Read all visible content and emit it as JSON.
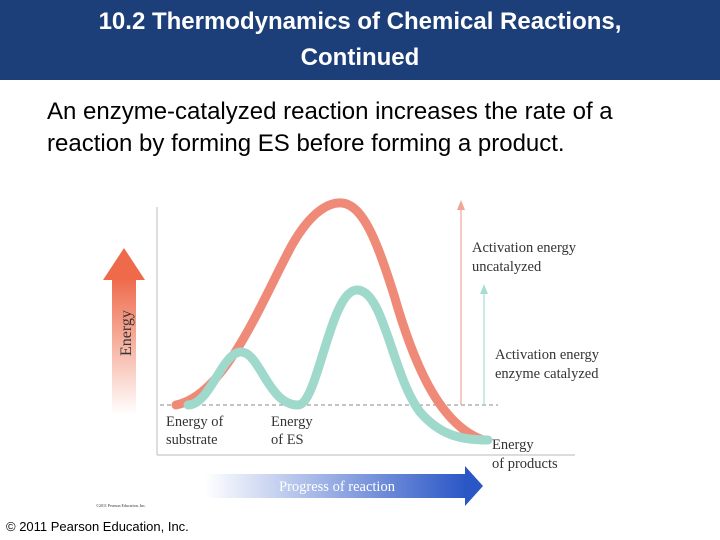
{
  "slide": {
    "title_line1": "10.2 Thermodynamics of Chemical Reactions,",
    "title_line2": "Continued",
    "body": "An enzyme-catalyzed reaction increases the rate of a reaction by forming ES before forming a product.",
    "footer": "© 2011 Pearson Education, Inc.",
    "colors": {
      "title_bg": "#1c3f7a",
      "uncatalyzed_curve": "#f08a78",
      "catalyzed_curve": "#9fd9cc",
      "energy_arrow": "#ee6a4a",
      "progress_arrow": "#2a56c6"
    }
  },
  "diagram": {
    "energy_axis_label": "Energy",
    "progress_label": "Progress of reaction",
    "label_substrate_line1": "Energy of",
    "label_substrate_line2": "substrate",
    "label_es_line1": "Energy",
    "label_es_line2": "of ES",
    "label_uncat_line1": "Activation energy",
    "label_uncat_line2": "uncatalyzed",
    "label_cat_line1": "Activation energy",
    "label_cat_line2": "enzyme catalyzed",
    "label_products_line1": "Energy",
    "label_products_line2": "of products",
    "small_credit": "©2011 Pearson Education, Inc."
  }
}
